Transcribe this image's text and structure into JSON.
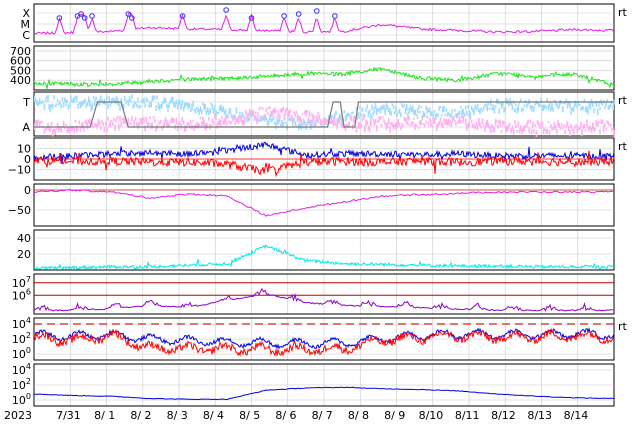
{
  "chart_data": {
    "type": "line",
    "x_start": "2023-07-30T12:00Z",
    "x_end": "2023-08-15T12:00Z",
    "date_labels": [
      "2023",
      "7/31",
      "8/ 1",
      "8/ 2",
      "8/ 3",
      "8/ 4",
      "8/ 5",
      "8/ 6",
      "8/ 7",
      "8/ 8",
      "8/ 9",
      "8/10",
      "8/11",
      "8/12",
      "8/13",
      "8/14"
    ],
    "colors": {
      "magenta": "#e020e0",
      "green": "#20e020",
      "lightblue": "#a0dcff",
      "pink": "#ffb0f0",
      "blue": "#0000e0",
      "red": "#ff0000",
      "cyan": "#00e8e8",
      "purple": "#9000c8",
      "grid": "#c8c8c8"
    },
    "panels": [
      {
        "id": "xray",
        "tick_labels": [
          "X",
          "M",
          "C"
        ],
        "right_mark": "rt",
        "series": [
          {
            "color": "magenta",
            "level_index": [
              0.15,
              0.18,
              0.22,
              0.35,
              0.3,
              0.28,
              0.25,
              0.2,
              0.22,
              0.45,
              0.3,
              0.25,
              0.2,
              0.22,
              0.28,
              0.25
            ]
          }
        ],
        "flare_markers_day": [
          0.7,
          1.2,
          1.3,
          1.4,
          1.6,
          2.6,
          2.7,
          4.1,
          5.3,
          6.0,
          6.9,
          7.3,
          7.8,
          8.3
        ]
      },
      {
        "id": "wind_speed",
        "tick_labels": [
          "700",
          "600",
          "500",
          "400"
        ],
        "right_mark": "",
        "ylim": [
          300,
          750
        ],
        "series": [
          {
            "color": "green",
            "values": [
              370,
              360,
              360,
              390,
              410,
              420,
              440,
              470,
              460,
              520,
              420,
              400,
              470,
              440,
              460,
              350
            ]
          }
        ]
      },
      {
        "id": "bz_orientation",
        "tick_labels": [
          "T",
          "A"
        ],
        "right_mark": "rt",
        "series": [
          {
            "color": "lightblue",
            "values": [
              0.9,
              0.9,
              0.9,
              0.9,
              0.8,
              0.6,
              0.4,
              0.3,
              0.5,
              0.7,
              0.6,
              0.6,
              0.8,
              0.8,
              0.8,
              0.8
            ]
          },
          {
            "color": "pink",
            "values": [
              0.2,
              0.2,
              0.3,
              0.3,
              0.3,
              0.4,
              0.6,
              0.5,
              0.3,
              0.3,
              0.3,
              0.4,
              0.2,
              0.2,
              0.2,
              0.2
            ]
          }
        ]
      },
      {
        "id": "imf",
        "tick_labels": [
          "0",
          "10",
          "−10"
        ],
        "right_mark": "rt",
        "ylim": [
          -20,
          20
        ],
        "series": [
          {
            "color": "blue",
            "values": [
              2,
              3,
              5,
              6,
              5,
              8,
              14,
              4,
              5,
              5,
              4,
              5,
              3,
              3,
              3,
              3
            ]
          },
          {
            "color": "red",
            "values": [
              -1,
              -2,
              -2,
              -3,
              -3,
              -5,
              -12,
              -3,
              -2,
              -3,
              -2,
              -3,
              -2,
              -2,
              -3,
              -2
            ]
          }
        ]
      },
      {
        "id": "dst",
        "tick_labels": [
          "0",
          "−50"
        ],
        "right_mark": "",
        "ylim": [
          -90,
          15
        ],
        "series": [
          {
            "color": "magenta",
            "values": [
              -5,
              0,
              -5,
              -20,
              -10,
              -15,
              -65,
              -45,
              -30,
              -15,
              -12,
              -8,
              -5,
              -5,
              -5,
              -5
            ]
          }
        ]
      },
      {
        "id": "ae",
        "tick_labels": [
          "40",
          "20"
        ],
        "right_mark": "",
        "ylim": [
          0,
          50
        ],
        "series": [
          {
            "color": "cyan",
            "values": [
              2,
              3,
              4,
              4,
              6,
              8,
              30,
              12,
              8,
              7,
              6,
              5,
              5,
              4,
              4,
              4
            ]
          }
        ]
      },
      {
        "id": "proton_flux",
        "tick_labels": [
          "10^7",
          "10^6"
        ],
        "right_mark": "",
        "ylim_exp": [
          4.5,
          7.7
        ],
        "threshold_lines_exp": [
          7,
          6
        ],
        "series": [
          {
            "color": "purple",
            "log_values": [
              4.8,
              4.8,
              4.9,
              5.2,
              5.0,
              5.6,
              6.1,
              5.4,
              5.2,
              5.1,
              5.0,
              4.9,
              4.8,
              4.8,
              4.8,
              4.8
            ]
          }
        ]
      },
      {
        "id": "electron_flux",
        "tick_labels": [
          "10^4",
          "10^2",
          "10^0"
        ],
        "right_mark": "rt",
        "ylim_exp": [
          -0.8,
          4.8
        ],
        "dashed_line_exp": 4,
        "series": [
          {
            "color": "blue",
            "log_values": [
              2.5,
              2.4,
              2.6,
              2.0,
              1.8,
              1.6,
              1.5,
              1.4,
              1.5,
              2.0,
              2.5,
              2.7,
              2.6,
              2.6,
              2.7,
              2.6
            ]
          },
          {
            "color": "red",
            "log_values": [
              2.2,
              1.8,
              2.5,
              0.8,
              0.7,
              0.7,
              0.6,
              0.6,
              0.7,
              1.8,
              2.2,
              2.4,
              2.2,
              2.3,
              2.4,
              2.3
            ]
          }
        ]
      },
      {
        "id": "total_electron",
        "tick_labels": [
          "10^4",
          "10^2",
          "10^0"
        ],
        "right_mark": "",
        "ylim_exp": [
          -0.8,
          4.8
        ],
        "series": [
          {
            "color": "blue",
            "log_values": [
              0.8,
              0.6,
              0.5,
              0.2,
              0.1,
              0.1,
              1.3,
              1.6,
              1.7,
              1.5,
              1.4,
              1.2,
              0.8,
              0.5,
              0.3,
              0.2
            ]
          }
        ]
      }
    ]
  }
}
